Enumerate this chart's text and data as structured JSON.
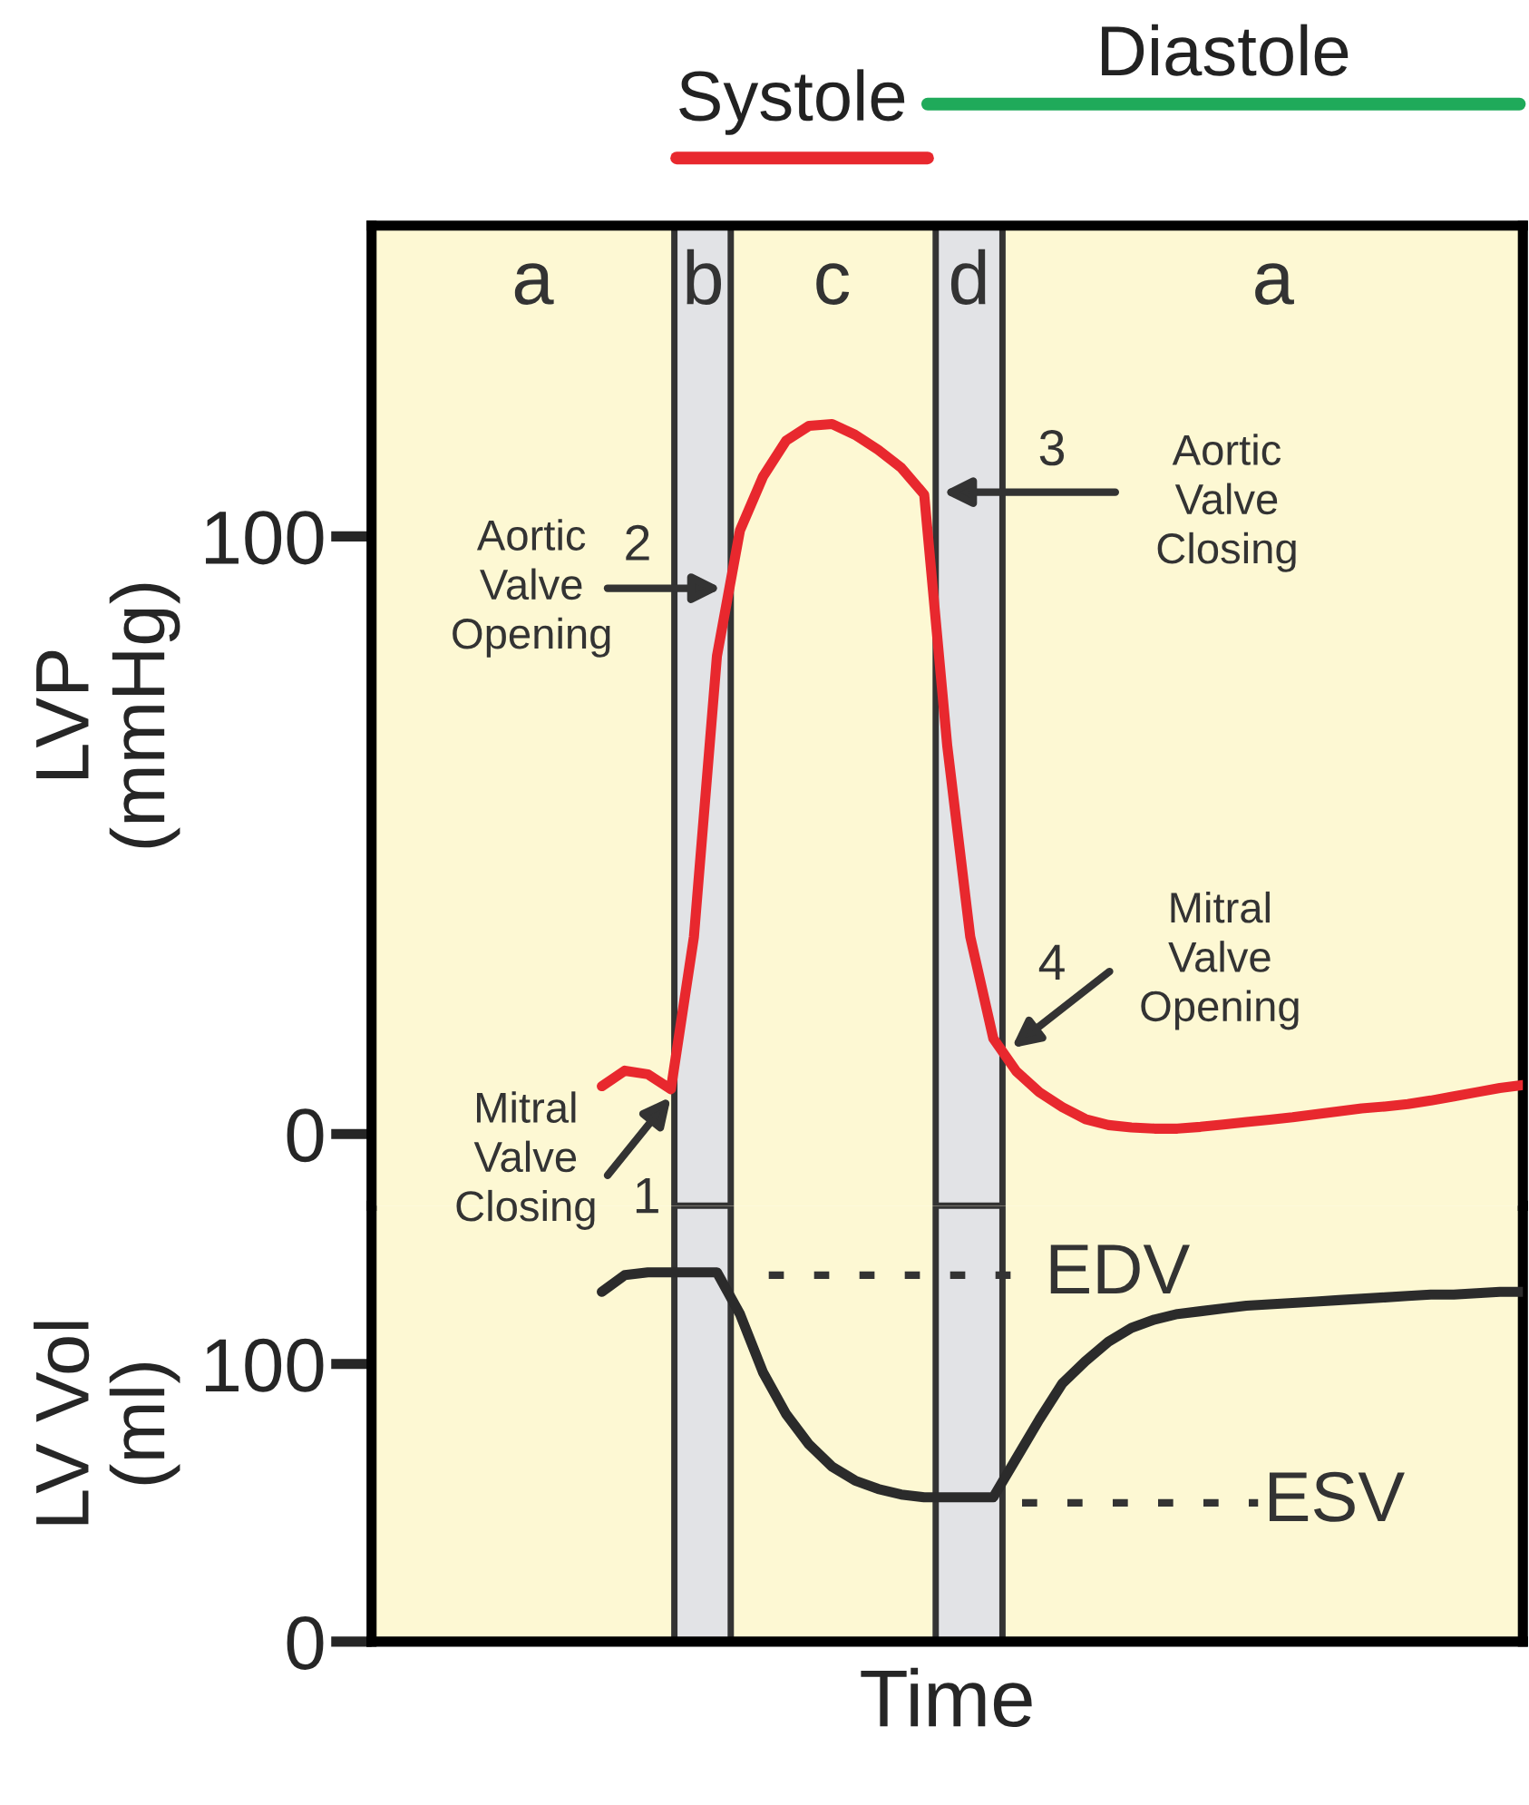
{
  "chart_data": [
    {
      "type": "line",
      "ylabel": "LVP\n(mmHg)",
      "categories": [
        null,
        null,
        null,
        null,
        null,
        null,
        null,
        null,
        null,
        null,
        null,
        null,
        null,
        null,
        null,
        null,
        null,
        null,
        null,
        null,
        null,
        null,
        null,
        null,
        null,
        null,
        null,
        null,
        null,
        null,
        null,
        null,
        null,
        null,
        null,
        null,
        null,
        null,
        null,
        null,
        null,
        null,
        null,
        null,
        null,
        null,
        null,
        null,
        null,
        null,
        null
      ],
      "ylim": [
        -12,
        152
      ],
      "yticks": [
        0,
        100
      ],
      "grid": false,
      "series": [
        {
          "color": "#e8282e",
          "values": [
            null,
            null,
            null,
            null,
            null,
            null,
            null,
            null,
            null,
            null,
            8,
            10.6,
            10,
            7.5,
            33,
            80,
            101,
            110,
            116,
            118.5,
            118.8,
            117,
            114.5,
            111.5,
            107,
            65,
            33,
            16,
            10.5,
            7,
            4.5,
            2.5,
            1.5,
            1.1,
            0.9,
            0.9,
            1.2,
            1.6,
            2,
            2.4,
            2.8,
            3.3,
            3.8,
            4.3,
            4.6,
            5,
            5.6,
            6.3,
            7,
            7.7,
            8.2
          ]
        }
      ],
      "annotations": [
        "a",
        "b",
        "c",
        "d",
        "a",
        "1",
        "Mitral\nValve\nClosing",
        "2",
        "Aortic\nValve\nOpening",
        "3",
        "Aortic\nValve\nClosing",
        "4",
        "Mitral\nValve\nOpening",
        "Systole",
        "Diastole"
      ]
    },
    {
      "type": "line",
      "ylabel": "LV Vol\n(ml)",
      "xlabel": "Time",
      "categories": [
        null,
        null,
        null,
        null,
        null,
        null,
        null,
        null,
        null,
        null,
        null,
        null,
        null,
        null,
        null,
        null,
        null,
        null,
        null,
        null,
        null,
        null,
        null,
        null,
        null,
        null,
        null,
        null,
        null,
        null,
        null,
        null,
        null,
        null,
        null,
        null,
        null,
        null,
        null,
        null,
        null,
        null,
        null,
        null,
        null,
        null,
        null,
        null,
        null,
        null,
        null
      ],
      "ylim": [
        0,
        157
      ],
      "yticks": [
        0,
        100
      ],
      "grid": false,
      "series": [
        {
          "color": "#2b2b2b",
          "values": [
            null,
            null,
            null,
            null,
            null,
            null,
            null,
            null,
            null,
            null,
            126,
            132,
            133,
            133,
            133,
            133,
            118,
            97,
            82,
            71,
            63,
            58,
            55,
            53,
            52,
            52,
            52,
            52,
            66,
            80,
            93,
            101,
            108,
            113,
            116,
            118,
            119,
            120,
            121,
            121.5,
            122,
            122.5,
            123,
            123.5,
            124,
            124.5,
            125,
            125,
            125.5,
            126,
            126
          ]
        }
      ],
      "ref_lines": [
        {
          "axis": "y",
          "value": 132,
          "label": "EDV",
          "line_style": "dotted"
        },
        {
          "axis": "y",
          "value": 50,
          "label": "ESV",
          "line_style": "dotted"
        }
      ]
    }
  ]
}
